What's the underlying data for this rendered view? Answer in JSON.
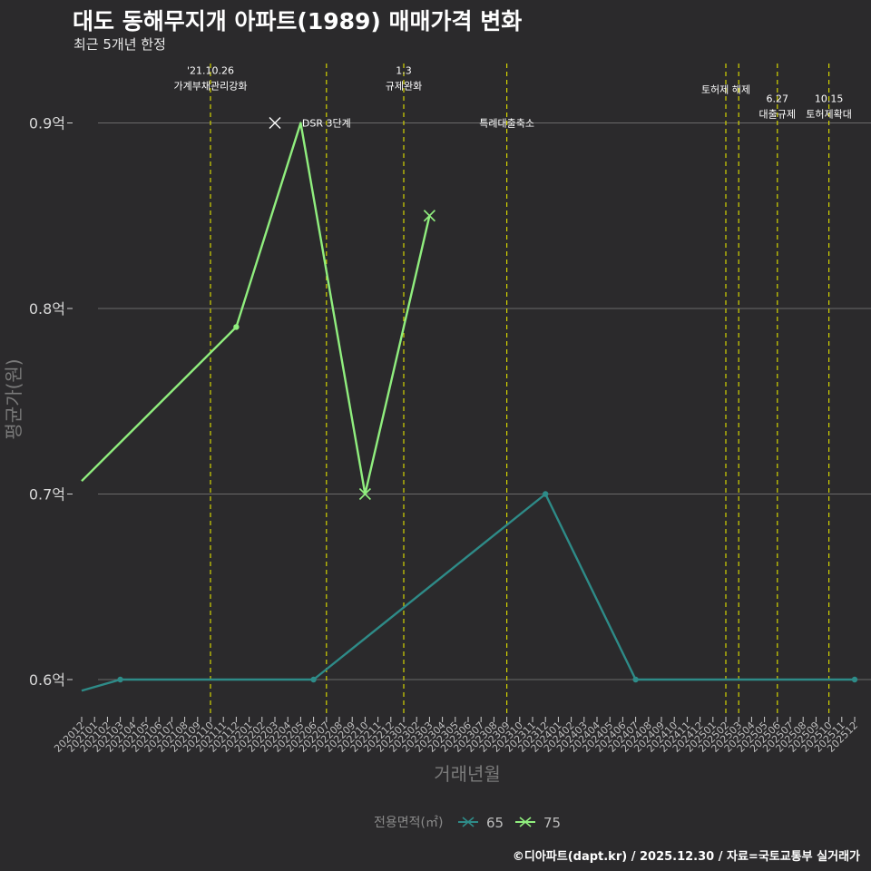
{
  "header": {
    "title": "대도 동해무지개 아파트(1989) 매매가격 변화",
    "subtitle": "최근 5개년 한정"
  },
  "footer": {
    "caption": "©디아파트(dapt.kr) / 2025.12.30 / 자료=국토교통부 실거래가"
  },
  "colors": {
    "background": "#2b2a2c",
    "series_65": "#2e8b88",
    "series_75": "#90ee7e",
    "event_line": "#d4d400",
    "grid": "#6a6a6a"
  },
  "chart_data": {
    "type": "line",
    "title": "대도 동해무지개 아파트(1989) 매매가격 변화",
    "subtitle": "최근 5개년 한정",
    "xlabel": "거래년월",
    "ylabel": "평균가(원)",
    "ylim": [
      0.58,
      0.93
    ],
    "yticks": [
      {
        "value": 0.6,
        "label": "0.6억"
      },
      {
        "value": 0.7,
        "label": "0.7억"
      },
      {
        "value": 0.8,
        "label": "0.8억"
      },
      {
        "value": 0.9,
        "label": "0.9억"
      }
    ],
    "categories": [
      "202012",
      "202101",
      "202102",
      "202103",
      "202104",
      "202105",
      "202106",
      "202107",
      "202108",
      "202109",
      "202110",
      "202111",
      "202112",
      "202201",
      "202202",
      "202203",
      "202204",
      "202205",
      "202206",
      "202207",
      "202208",
      "202209",
      "202210",
      "202211",
      "202212",
      "202301",
      "202302",
      "202303",
      "202304",
      "202305",
      "202306",
      "202307",
      "202308",
      "202309",
      "202310",
      "202311",
      "202312",
      "202401",
      "202402",
      "202403",
      "202404",
      "202405",
      "202406",
      "202407",
      "202408",
      "202409",
      "202410",
      "202411",
      "202412",
      "202501",
      "202502",
      "202503",
      "202504",
      "202505",
      "202506",
      "202507",
      "202508",
      "202509",
      "202510",
      "202511",
      "202512"
    ],
    "legend": {
      "title": "전용면적(㎡)",
      "position": "bottom"
    },
    "series": [
      {
        "name": "65",
        "color": "#2e8b88",
        "points": [
          {
            "x": "202012",
            "y": 0.594,
            "marker": "none"
          },
          {
            "x": "202103",
            "y": 0.6,
            "marker": "dot"
          },
          {
            "x": "202206",
            "y": 0.6,
            "marker": "dot"
          },
          {
            "x": "202312",
            "y": 0.7,
            "marker": "dot"
          },
          {
            "x": "202407",
            "y": 0.6,
            "marker": "dot"
          },
          {
            "x": "202512",
            "y": 0.6,
            "marker": "dot"
          }
        ]
      },
      {
        "name": "75",
        "color": "#90ee7e",
        "points": [
          {
            "x": "202012",
            "y": 0.707,
            "marker": "none"
          },
          {
            "x": "202112",
            "y": 0.79,
            "marker": "dot"
          },
          {
            "x": "202205",
            "y": 0.9,
            "marker": "none"
          },
          {
            "x": "202210",
            "y": 0.7,
            "marker": "cross"
          },
          {
            "x": "202303",
            "y": 0.85,
            "marker": "cross"
          }
        ],
        "extra_markers": [
          {
            "x": "202203",
            "y": 0.9,
            "marker": "cross"
          }
        ]
      }
    ],
    "events": [
      {
        "x": "202110",
        "lines": [
          "'21.10.26",
          "가계부채관리강화"
        ],
        "y_value": 0.92
      },
      {
        "x": "202207",
        "lines": [
          "DSR 3단계"
        ],
        "y_value": 0.9
      },
      {
        "x": "202301",
        "lines": [
          "1.3",
          "규제완화"
        ],
        "y_value": 0.92
      },
      {
        "x": "202309",
        "lines": [
          "특례대출축소"
        ],
        "y_value": 0.9
      },
      {
        "x": "202502",
        "lines": [
          "토허제 해제"
        ],
        "y_value": 0.918
      },
      {
        "x": "202503",
        "lines": [],
        "y_value": 0.918
      },
      {
        "x": "202506",
        "lines": [
          "6.27",
          "대출규제"
        ],
        "y_value": 0.905
      },
      {
        "x": "202510",
        "lines": [
          "10.15",
          "토허제확대"
        ],
        "y_value": 0.905
      }
    ]
  }
}
